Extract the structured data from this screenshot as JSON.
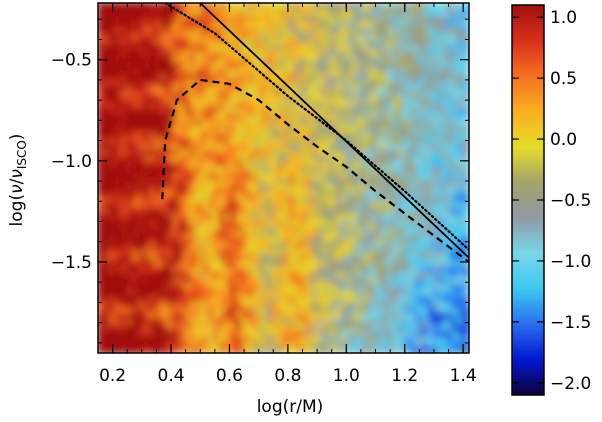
{
  "chart_data": {
    "type": "heatmap",
    "xlabel": "log(r/M)",
    "ylabel_parts": {
      "prefix": "log(",
      "nu": "ν",
      "slash": "/",
      "nu2": "ν",
      "sub": "ISCO",
      "suffix": ")"
    },
    "xlim": [
      0.15,
      1.42
    ],
    "ylim": [
      -1.95,
      -0.22
    ],
    "x_ticks": [
      0.2,
      0.4,
      0.6,
      0.8,
      1.0,
      1.2,
      1.4
    ],
    "x_tick_labels": [
      "0.2",
      "0.4",
      "0.6",
      "0.8",
      "1.0",
      "1.2",
      "1.4"
    ],
    "y_ticks": [
      -0.5,
      -1.0,
      -1.5
    ],
    "y_tick_labels": [
      "−0.5",
      "−1.0",
      "−1.5"
    ],
    "colorbar": {
      "range": [
        -2.1,
        1.1
      ],
      "ticks": [
        1.0,
        0.5,
        0.0,
        -0.5,
        -1.0,
        -1.5,
        -2.0
      ],
      "tick_labels": [
        "1.0",
        "0.5",
        "0.0",
        "−0.5",
        "−1.0",
        "−1.5",
        "−2.0"
      ],
      "colormap": [
        "#10003a",
        "#0018d0",
        "#2a6ef0",
        "#3cc8f0",
        "#7ad7e8",
        "#8f9aa3",
        "#a3a36a",
        "#e6dc2a",
        "#f8b020",
        "#f57020",
        "#d8301a",
        "#a01010"
      ]
    },
    "overlay_lines": [
      {
        "style": "solid",
        "x": [
          0.5,
          1.42
        ],
        "y": [
          -0.22,
          -1.48
        ]
      },
      {
        "style": "dotted",
        "x": [
          0.38,
          0.55,
          0.8,
          1.0,
          1.2,
          1.42
        ],
        "y": [
          -0.22,
          -0.37,
          -0.68,
          -0.9,
          -1.15,
          -1.44
        ]
      },
      {
        "style": "dashed",
        "x": [
          0.37,
          0.38,
          0.42,
          0.5,
          0.6,
          0.7,
          0.8,
          0.9,
          1.0,
          1.1,
          1.2,
          1.3,
          1.42
        ],
        "y": [
          -1.19,
          -0.9,
          -0.7,
          -0.6,
          -0.62,
          -0.7,
          -0.82,
          -0.93,
          -1.03,
          -1.15,
          -1.26,
          -1.37,
          -1.5
        ]
      }
    ]
  }
}
